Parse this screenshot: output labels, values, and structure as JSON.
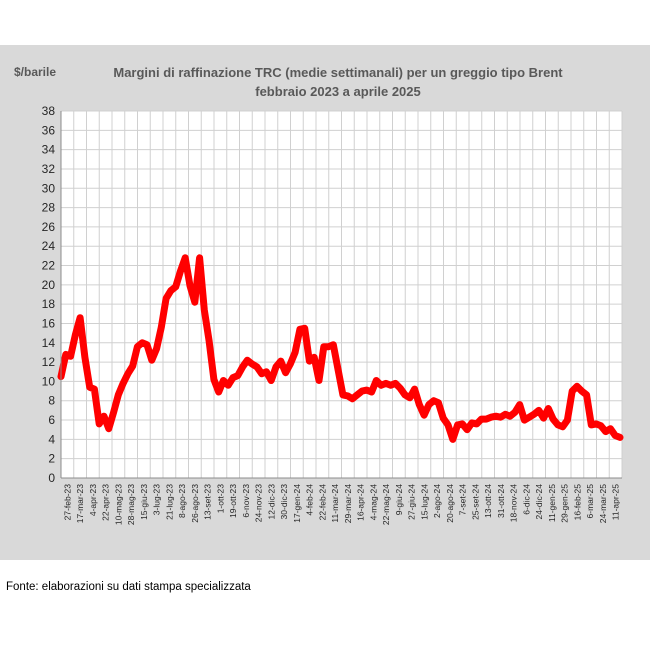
{
  "chart_data": {
    "type": "line",
    "title": "Margini di raffinazione TRC (medie settimanali) per un greggio tipo Brent",
    "subtitle": "febbraio 2023 a aprile  2025",
    "ylabel": "$/barile",
    "xlabel": "",
    "ylim": [
      0,
      38
    ],
    "yticks": [
      0,
      2,
      4,
      6,
      8,
      10,
      12,
      14,
      16,
      18,
      20,
      22,
      24,
      26,
      28,
      30,
      32,
      34,
      36,
      38
    ],
    "grid": true,
    "legend": "none",
    "line_color": "#ff0000",
    "tick_labels": [
      "27-feb-23",
      "17-mar-23",
      "4-apr-23",
      "22-apr-23",
      "10-mag-23",
      "28-mag-23",
      "15-giu-23",
      "3-lug-23",
      "21-lug-23",
      "8-ago-23",
      "26-ago-23",
      "13-set-23",
      "1-ott-23",
      "19-ott-23",
      "6-nov-23",
      "24-nov-23",
      "12-dic-23",
      "30-dic-23",
      "17-gen-24",
      "4-feb-24",
      "22-feb-24",
      "11-mar-24",
      "29-mar-24",
      "16-apr-24",
      "4-mag-24",
      "22-mag-24",
      "9-giu-24",
      "27-giu-24",
      "15-lug-24",
      "2-ago-24",
      "20-ago-24",
      "7-set-24",
      "25-set-24",
      "13-ott-24",
      "31-ott-24",
      "18-nov-24",
      "6-dic-24",
      "24-dic-24",
      "11-gen-25",
      "29-gen-25",
      "16-feb-25",
      "6-mar-25",
      "24-mar-25",
      "11-apr-25"
    ],
    "series": [
      {
        "values": [
          10.5,
          12.8,
          12.6,
          14.8,
          16.6,
          12.5,
          9.4,
          9.2,
          5.6,
          6.4,
          5.1,
          6.8,
          8.6,
          9.8,
          10.8,
          11.6,
          13.6,
          14.0,
          13.8,
          12.2,
          13.4,
          15.6,
          18.6,
          19.4,
          19.8,
          21.4,
          22.8,
          19.9,
          18.2,
          22.8,
          17.4,
          14.2,
          10.2,
          8.9,
          10.1,
          9.6,
          10.4,
          10.6,
          11.5,
          12.2,
          11.8,
          11.5,
          10.8,
          11.0,
          10.1,
          11.5,
          12.1,
          10.9,
          11.8,
          13.0,
          15.4,
          15.5,
          12.1,
          12.5,
          10.1,
          13.6,
          13.6,
          13.8,
          11.2,
          8.6,
          8.5,
          8.2,
          8.6,
          9.0,
          9.1,
          8.9,
          10.1,
          9.6,
          9.8,
          9.6,
          9.8,
          9.3,
          8.6,
          8.3,
          9.2,
          7.6,
          6.5,
          7.6,
          8.0,
          7.8,
          6.2,
          5.5,
          4.0,
          5.5,
          5.6,
          5.0,
          5.7,
          5.6,
          6.1,
          6.1,
          6.3,
          6.4,
          6.3,
          6.6,
          6.4,
          6.8,
          7.6,
          6.0,
          6.3,
          6.6,
          7.0,
          6.2,
          7.2,
          6.1,
          5.5,
          5.3,
          6.0,
          9.0,
          9.5,
          9.0,
          8.6,
          5.5,
          5.6,
          5.4,
          4.8,
          5.1,
          4.4,
          4.2
        ]
      }
    ]
  },
  "source": "Fonte: elaborazioni su dati stampa specializzata"
}
